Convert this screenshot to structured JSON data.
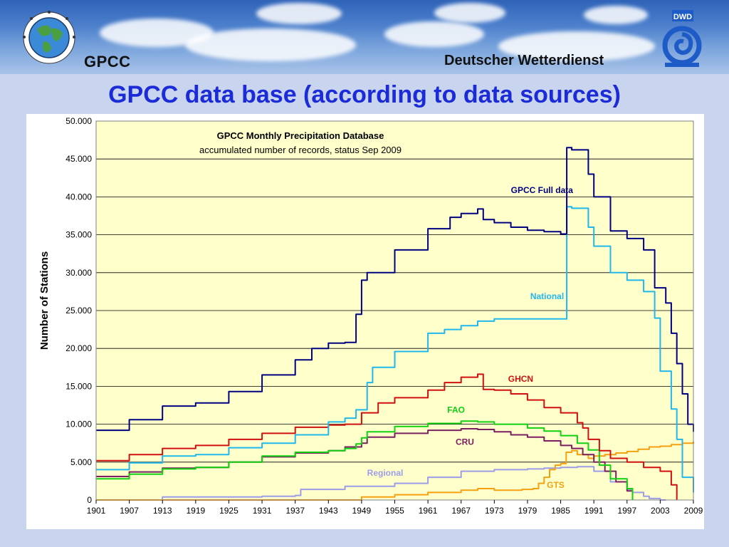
{
  "header": {
    "left_brand": "GPCC",
    "right_brand": "Deutscher Wetterdienst",
    "dwd_badge": "DWD",
    "logo_icon": "globe-icon",
    "dwd_icon": "dwd-swirl-icon"
  },
  "slide": {
    "title": "GPCC data base (according to data sources)"
  },
  "chart_data": {
    "type": "line",
    "title": "GPCC Monthly Precipitation Database",
    "subtitle": "accumulated number of records, status Sep 2009",
    "xlabel": "",
    "ylabel": "Number of Stations",
    "xlim": [
      1901,
      2009
    ],
    "ylim": [
      0,
      50000
    ],
    "x_ticks": [
      "1901",
      "1907",
      "1913",
      "1919",
      "1925",
      "1931",
      "1937",
      "1943",
      "1949",
      "1955",
      "1961",
      "1967",
      "1973",
      "1979",
      "1985",
      "1991",
      "1997",
      "2003",
      "2009"
    ],
    "y_ticks": [
      "0",
      "5.000",
      "10.000",
      "15.000",
      "20.000",
      "25.000",
      "30.000",
      "35.000",
      "40.000",
      "45.000",
      "50.000"
    ],
    "grid": true,
    "plot_background": "#ffffcc",
    "series": [
      {
        "name": "GPCC Full data",
        "color": "#000080",
        "x": [
          1901,
          1907,
          1913,
          1919,
          1925,
          1931,
          1937,
          1940,
          1943,
          1946,
          1948,
          1949,
          1950,
          1955,
          1961,
          1965,
          1967,
          1970,
          1971,
          1973,
          1976,
          1979,
          1982,
          1985,
          1986,
          1986.1,
          1987,
          1990,
          1991,
          1994,
          1997,
          2000,
          2002,
          2004,
          2005,
          2006,
          2007,
          2008,
          2009
        ],
        "y": [
          9200,
          10600,
          12400,
          12800,
          14300,
          16500,
          18500,
          20000,
          20700,
          20800,
          24500,
          29000,
          30000,
          33000,
          35800,
          37300,
          37800,
          38400,
          37000,
          36600,
          36000,
          35600,
          35400,
          35100,
          35100,
          46500,
          46200,
          43000,
          40000,
          35500,
          34500,
          33000,
          28000,
          26000,
          22000,
          18000,
          14000,
          10000,
          9000
        ]
      },
      {
        "name": "National",
        "color": "#20b8ec",
        "x": [
          1901,
          1907,
          1913,
          1919,
          1925,
          1931,
          1937,
          1943,
          1946,
          1948,
          1950,
          1951,
          1955,
          1961,
          1964,
          1967,
          1970,
          1973,
          1979,
          1985,
          1986,
          1986.1,
          1987,
          1990,
          1991,
          1994,
          1997,
          2000,
          2002,
          2003,
          2005,
          2006,
          2007,
          2009
        ],
        "y": [
          4000,
          4900,
          5800,
          6000,
          6900,
          7500,
          8600,
          10300,
          10800,
          11900,
          15500,
          17500,
          19600,
          22000,
          22500,
          23000,
          23600,
          23900,
          23900,
          23900,
          23900,
          38700,
          38500,
          36000,
          33500,
          30000,
          29000,
          27500,
          24000,
          17000,
          12000,
          8000,
          3000,
          1000
        ]
      },
      {
        "name": "GHCN",
        "color": "#d01010",
        "x": [
          1901,
          1907,
          1913,
          1919,
          1925,
          1931,
          1937,
          1943,
          1946,
          1949,
          1952,
          1955,
          1961,
          1964,
          1967,
          1970,
          1971,
          1973,
          1976,
          1979,
          1982,
          1985,
          1988,
          1989,
          1990,
          1992,
          1994,
          1997,
          2000,
          2003,
          2005,
          2006
        ],
        "y": [
          5200,
          6000,
          6800,
          7200,
          8000,
          8800,
          9600,
          9900,
          10000,
          11500,
          12800,
          13500,
          14500,
          15500,
          16200,
          16600,
          14600,
          14500,
          14000,
          13200,
          12200,
          11500,
          10200,
          9500,
          8000,
          6500,
          5500,
          5000,
          4300,
          3800,
          2000,
          0
        ]
      },
      {
        "name": "FAO",
        "color": "#10d010",
        "x": [
          1901,
          1907,
          1913,
          1919,
          1925,
          1931,
          1937,
          1943,
          1946,
          1948,
          1949,
          1950,
          1955,
          1961,
          1967,
          1970,
          1973,
          1979,
          1982,
          1985,
          1988,
          1990,
          1992,
          1994,
          1997,
          1998
        ],
        "y": [
          2800,
          3400,
          4100,
          4300,
          5000,
          5800,
          6300,
          6500,
          6800,
          7400,
          8200,
          9000,
          9700,
          10100,
          10400,
          10300,
          10000,
          9500,
          9100,
          8500,
          7500,
          6600,
          4600,
          2800,
          1500,
          0
        ]
      },
      {
        "name": "CRU",
        "color": "#7a2060",
        "x": [
          1901,
          1907,
          1913,
          1919,
          1925,
          1931,
          1937,
          1943,
          1946,
          1949,
          1950,
          1955,
          1961,
          1967,
          1970,
          1973,
          1976,
          1979,
          1982,
          1985,
          1987,
          1989,
          1991,
          1993,
          1995,
          1997,
          1998
        ],
        "y": [
          3100,
          3700,
          4200,
          4300,
          5000,
          5700,
          6200,
          6500,
          7000,
          7500,
          8300,
          8800,
          9200,
          9400,
          9300,
          9000,
          8600,
          8300,
          7800,
          7200,
          6800,
          6000,
          5000,
          3800,
          2400,
          1200,
          0
        ]
      },
      {
        "name": "Regional",
        "color": "#9c9ce8",
        "x": [
          1901,
          1913,
          1925,
          1931,
          1937,
          1938,
          1946,
          1955,
          1961,
          1967,
          1973,
          1976,
          1979,
          1982,
          1985,
          1988,
          1991,
          1994,
          1997,
          1998,
          2000,
          2001,
          2003,
          2004
        ],
        "y": [
          0,
          400,
          400,
          500,
          600,
          1400,
          1800,
          2200,
          3000,
          3800,
          4000,
          4000,
          4100,
          4200,
          4300,
          4400,
          3800,
          2400,
          1400,
          1000,
          500,
          200,
          0,
          0
        ]
      },
      {
        "name": "GTS",
        "color": "#f4a010",
        "x": [
          1901,
          1948,
          1949,
          1955,
          1961,
          1967,
          1970,
          1973,
          1976,
          1978,
          1980,
          1981,
          1982,
          1983,
          1984,
          1985,
          1986,
          1987,
          1988,
          1990,
          1991,
          1993,
          1995,
          1997,
          1999,
          2001,
          2003,
          2005,
          2007,
          2009
        ],
        "y": [
          0,
          0,
          400,
          700,
          1000,
          1300,
          1500,
          1300,
          1300,
          1400,
          1500,
          2200,
          3000,
          4000,
          4600,
          4800,
          6300,
          6500,
          6000,
          5500,
          5800,
          6000,
          6200,
          6400,
          6700,
          7000,
          7100,
          7300,
          7500,
          7700
        ]
      }
    ],
    "series_labels": [
      {
        "series": "GPCC Full data",
        "text": "GPCC Full data"
      },
      {
        "series": "National",
        "text": "National"
      },
      {
        "series": "GHCN",
        "text": "GHCN"
      },
      {
        "series": "FAO",
        "text": "FAO"
      },
      {
        "series": "CRU",
        "text": "CRU"
      },
      {
        "series": "Regional",
        "text": "Regional"
      },
      {
        "series": "GTS",
        "text": "GTS"
      }
    ]
  }
}
